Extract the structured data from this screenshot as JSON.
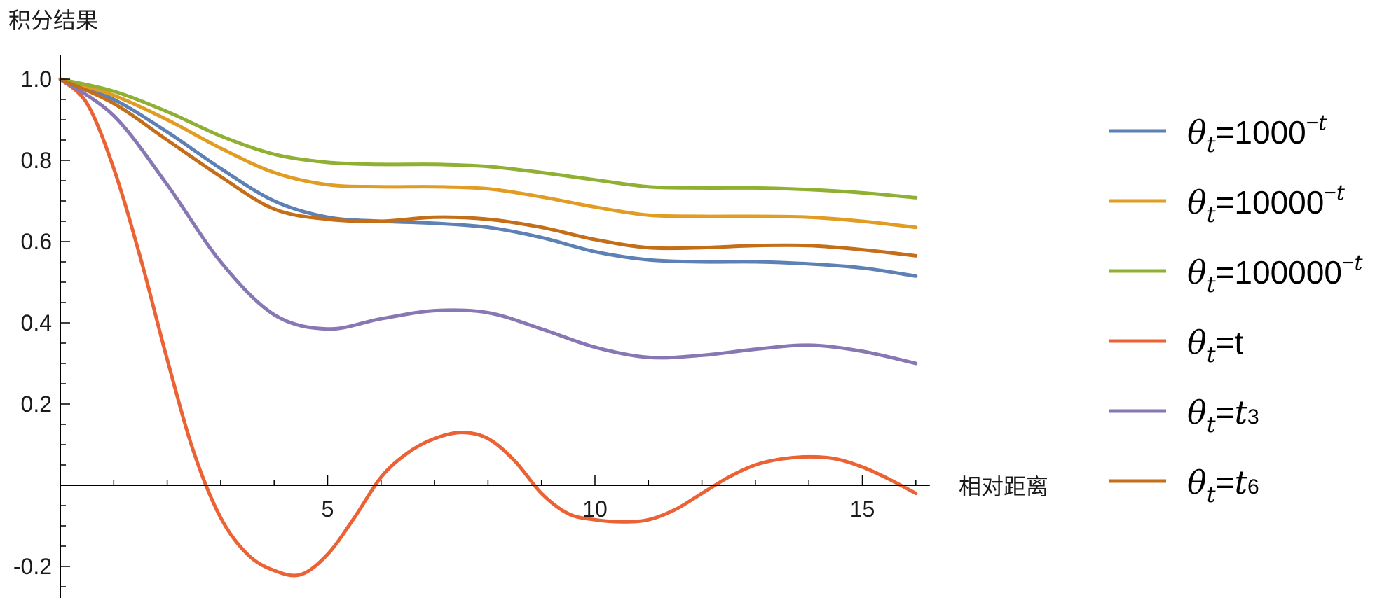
{
  "chart_data": {
    "type": "line",
    "ylabel": "积分结果",
    "xlabel": "相对距离",
    "xlim": [
      0,
      16
    ],
    "ylim": [
      -0.29,
      1.06
    ],
    "x_ticks": [
      5,
      10,
      15
    ],
    "x_tick_labels": [
      "5",
      "10",
      "15"
    ],
    "y_ticks": [
      -0.2,
      0.2,
      0.4,
      0.6,
      0.8,
      1.0
    ],
    "y_tick_labels": [
      "-0.2",
      "0.2",
      "0.4",
      "0.6",
      "0.8",
      "1.0"
    ],
    "grid": false,
    "legend_position": "right",
    "series": [
      {
        "name": "θt=1000^-t",
        "color": "#5e81b5",
        "legend": {
          "theta": "θ",
          "sub": "t",
          "eq": "=1000",
          "sup_sign": "−",
          "sup_var": "t"
        },
        "x": [
          0,
          1,
          2,
          3,
          4,
          5,
          6,
          7,
          8,
          9,
          10,
          11,
          12,
          13,
          14,
          15,
          16
        ],
        "y": [
          1.0,
          0.95,
          0.87,
          0.78,
          0.7,
          0.66,
          0.65,
          0.645,
          0.635,
          0.61,
          0.575,
          0.555,
          0.55,
          0.55,
          0.545,
          0.535,
          0.515
        ]
      },
      {
        "name": "θt=10000^-t",
        "color": "#e19c24",
        "legend": {
          "theta": "θ",
          "sub": "t",
          "eq": "=10000",
          "sup_sign": "−",
          "sup_var": "t"
        },
        "x": [
          0,
          1,
          2,
          3,
          4,
          5,
          6,
          7,
          8,
          9,
          10,
          11,
          12,
          13,
          14,
          15,
          16
        ],
        "y": [
          1.0,
          0.96,
          0.9,
          0.83,
          0.77,
          0.74,
          0.735,
          0.735,
          0.73,
          0.71,
          0.685,
          0.665,
          0.662,
          0.662,
          0.66,
          0.65,
          0.635
        ]
      },
      {
        "name": "θt=100000^-t",
        "color": "#8fb032",
        "legend": {
          "theta": "θ",
          "sub": "t",
          "eq": "=100000",
          "sup_sign": "−",
          "sup_var": "t"
        },
        "x": [
          0,
          1,
          2,
          3,
          4,
          5,
          6,
          7,
          8,
          9,
          10,
          11,
          12,
          13,
          14,
          15,
          16
        ],
        "y": [
          1.0,
          0.97,
          0.92,
          0.86,
          0.815,
          0.795,
          0.79,
          0.79,
          0.785,
          0.77,
          0.752,
          0.735,
          0.732,
          0.732,
          0.728,
          0.72,
          0.708
        ]
      },
      {
        "name": "θt=t",
        "color": "#eb6235",
        "legend": {
          "theta": "θ",
          "sub": "t",
          "eq": "=t",
          "sup_sign": "",
          "sup_var": ""
        },
        "x": [
          0,
          0.5,
          1,
          1.5,
          2,
          2.5,
          3,
          3.5,
          4,
          4.5,
          5,
          5.5,
          6,
          6.5,
          7,
          7.5,
          8,
          8.5,
          9,
          9.5,
          10,
          10.5,
          11,
          11.5,
          12,
          12.5,
          13,
          13.5,
          14,
          14.5,
          15,
          15.5,
          16
        ],
        "y": [
          1.0,
          0.94,
          0.78,
          0.56,
          0.31,
          0.08,
          -0.08,
          -0.17,
          -0.21,
          -0.22,
          -0.17,
          -0.08,
          0.02,
          0.08,
          0.115,
          0.13,
          0.115,
          0.06,
          -0.02,
          -0.07,
          -0.085,
          -0.09,
          -0.085,
          -0.06,
          -0.02,
          0.02,
          0.05,
          0.065,
          0.07,
          0.065,
          0.045,
          0.015,
          -0.02
        ]
      },
      {
        "name": "θt=t^3",
        "color": "#8778b3",
        "legend": {
          "theta": "θ",
          "sub": "t",
          "eq": "=",
          "eq_ital": "t",
          "sup_sign": "",
          "sup_var": "3"
        },
        "x": [
          0,
          1,
          2,
          3,
          4,
          5,
          6,
          7,
          8,
          9,
          10,
          11,
          12,
          13,
          14,
          15,
          16
        ],
        "y": [
          1.0,
          0.91,
          0.74,
          0.55,
          0.42,
          0.385,
          0.41,
          0.43,
          0.425,
          0.385,
          0.34,
          0.315,
          0.32,
          0.335,
          0.345,
          0.33,
          0.3
        ]
      },
      {
        "name": "θt=t^6",
        "color": "#c56e1a",
        "legend": {
          "theta": "θ",
          "sub": "t",
          "eq": "=",
          "eq_ital": "t",
          "sup_sign": "",
          "sup_var": "6"
        },
        "x": [
          0,
          1,
          2,
          3,
          4,
          5,
          6,
          7,
          8,
          9,
          10,
          11,
          12,
          13,
          14,
          15,
          16
        ],
        "y": [
          1.0,
          0.94,
          0.85,
          0.76,
          0.68,
          0.655,
          0.65,
          0.66,
          0.655,
          0.635,
          0.605,
          0.585,
          0.585,
          0.59,
          0.59,
          0.58,
          0.565
        ]
      }
    ]
  }
}
